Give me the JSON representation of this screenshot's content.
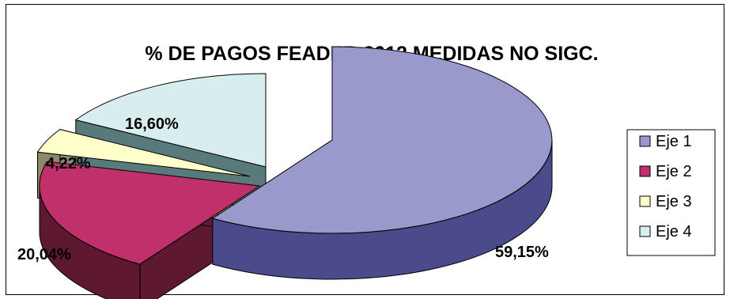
{
  "chart_data": {
    "type": "pie",
    "title": "% DE PAGOS FEADER 2012 MEDIDAS NO SIGC.",
    "categories": [
      "Eje 1",
      "Eje 2",
      "Eje 3",
      "Eje 4"
    ],
    "values": [
      59.15,
      20.04,
      4.22,
      16.6
    ],
    "data_labels": [
      "59,15%",
      "20,04%",
      "4,22%",
      "16,60%"
    ],
    "exploded": true,
    "three_d": true,
    "legend_position": "right",
    "colors": {
      "top": [
        "#9999cc",
        "#c0306a",
        "#ffffcc",
        "#d8eeee"
      ],
      "side": [
        "#4b4b8c",
        "#5e1830",
        "#8a8a6a",
        "#587a7a"
      ]
    }
  }
}
